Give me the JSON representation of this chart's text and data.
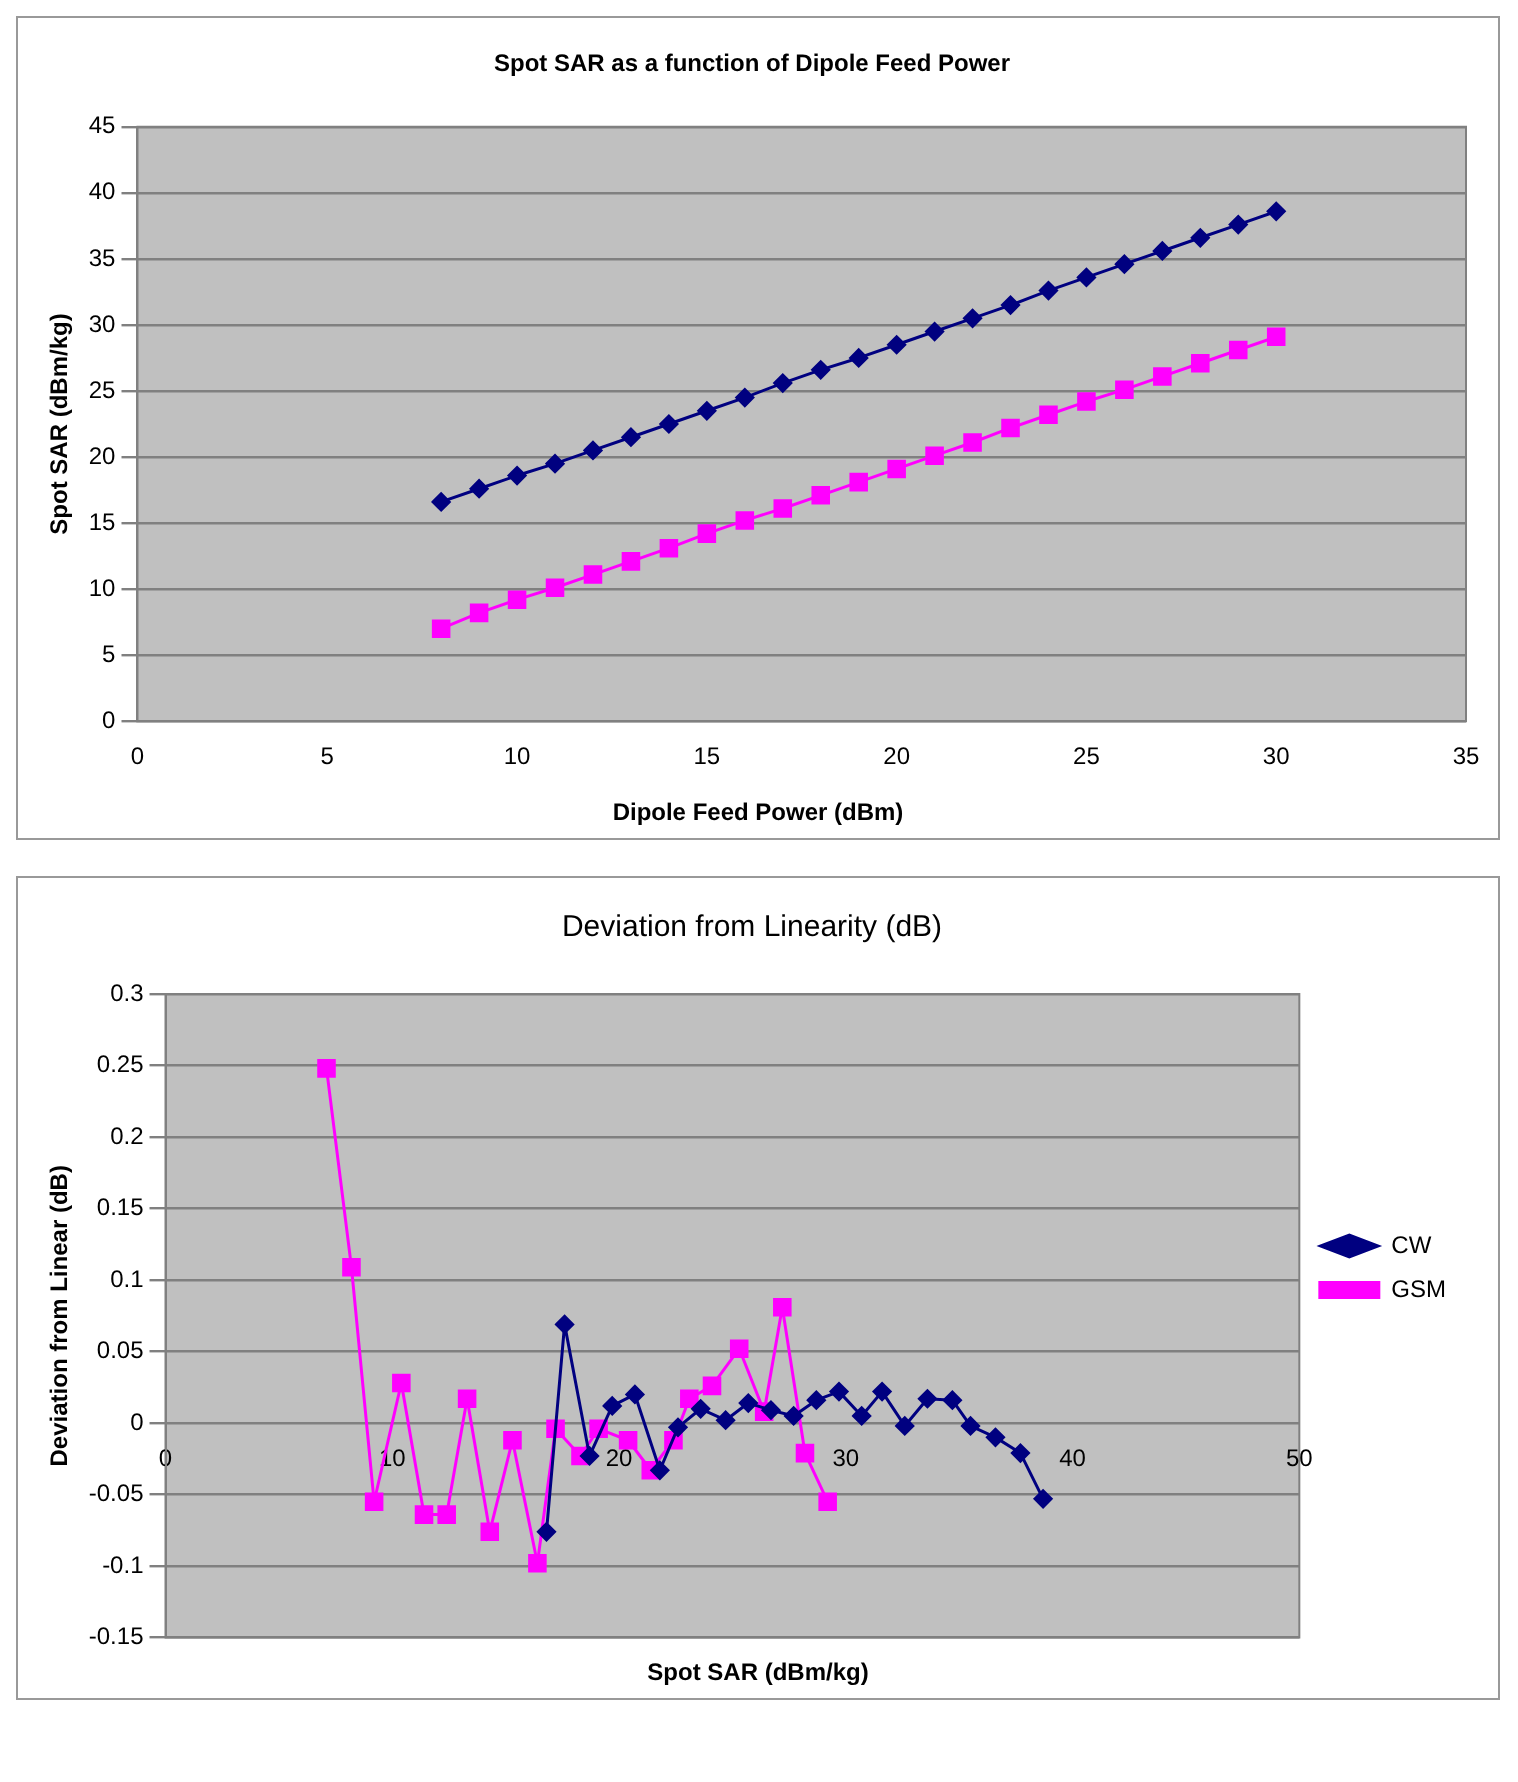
{
  "chart_data": [
    {
      "type": "line",
      "title": "Spot SAR as a function of Dipole Feed Power",
      "xlabel": "Dipole Feed Power (dBm)",
      "ylabel": "Spot SAR (dBm/kg)",
      "xlim": [
        0,
        35
      ],
      "xticks": [
        0,
        5,
        10,
        15,
        20,
        25,
        30,
        35
      ],
      "ylim": [
        0,
        45
      ],
      "yticks": [
        0,
        5,
        10,
        15,
        20,
        25,
        30,
        35,
        40,
        45
      ],
      "grid": "y",
      "legend": false,
      "x": [
        8,
        9,
        10,
        11,
        12,
        13,
        14,
        15,
        16,
        17,
        18,
        19,
        20,
        21,
        22,
        23,
        24,
        25,
        26,
        27,
        28,
        29,
        30
      ],
      "series": [
        {
          "color": "#000080",
          "marker": "diamond",
          "values": [
            16.6,
            17.6,
            18.6,
            19.5,
            20.5,
            21.5,
            22.5,
            23.5,
            24.5,
            25.6,
            26.6,
            27.5,
            28.5,
            29.5,
            30.5,
            31.5,
            32.6,
            33.6,
            34.6,
            35.6,
            36.6,
            37.6,
            38.6
          ]
        },
        {
          "color": "#ff00ff",
          "marker": "square",
          "values": [
            7.0,
            8.2,
            9.2,
            10.1,
            11.1,
            12.1,
            13.1,
            14.2,
            15.2,
            16.1,
            17.1,
            18.1,
            19.1,
            20.1,
            21.1,
            22.2,
            23.2,
            24.2,
            25.1,
            26.1,
            27.1,
            28.1,
            29.1
          ]
        }
      ]
    },
    {
      "type": "line",
      "title": "Deviation from Linearity (dB)",
      "xlabel": "Spot SAR (dBm/kg)",
      "ylabel": "Deviation from Linear (dB)",
      "xlim": [
        0,
        50
      ],
      "xticks": [
        0,
        10,
        20,
        30,
        40,
        50
      ],
      "ylim": [
        -0.15,
        0.3
      ],
      "yticks": [
        -0.15,
        -0.1,
        -0.05,
        0,
        0.05,
        0.1,
        0.15,
        0.2,
        0.25,
        0.3
      ],
      "grid": "y",
      "legend": "right",
      "series": [
        {
          "name": "CW",
          "color": "#000080",
          "marker": "diamond",
          "x": [
            16.8,
            17.6,
            18.7,
            19.7,
            20.7,
            21.8,
            22.6,
            23.6,
            24.7,
            25.7,
            26.7,
            27.7,
            28.7,
            29.7,
            30.7,
            31.6,
            32.6,
            33.6,
            34.7,
            35.5,
            36.6,
            37.7,
            38.7
          ],
          "values": [
            -0.076,
            0.069,
            -0.023,
            0.012,
            0.02,
            -0.033,
            -0.003,
            0.01,
            0.002,
            0.014,
            0.009,
            0.005,
            0.016,
            0.022,
            0.005,
            0.022,
            -0.002,
            0.017,
            0.016,
            -0.002,
            -0.01,
            -0.021,
            -0.053
          ]
        },
        {
          "name": "GSM",
          "color": "#ff00ff",
          "marker": "square",
          "x": [
            7.1,
            8.2,
            9.2,
            10.4,
            11.4,
            12.4,
            13.3,
            14.3,
            15.3,
            16.4,
            17.2,
            18.3,
            19.1,
            20.4,
            21.4,
            22.4,
            23.1,
            24.1,
            25.3,
            26.4,
            27.2,
            28.2,
            29.2
          ],
          "values": [
            0.248,
            0.109,
            -0.055,
            0.028,
            -0.064,
            -0.064,
            0.017,
            -0.076,
            -0.012,
            -0.098,
            -0.004,
            -0.023,
            -0.004,
            -0.012,
            -0.033,
            -0.012,
            0.017,
            0.026,
            0.052,
            0.008,
            0.081,
            -0.021,
            -0.055
          ]
        }
      ]
    }
  ]
}
